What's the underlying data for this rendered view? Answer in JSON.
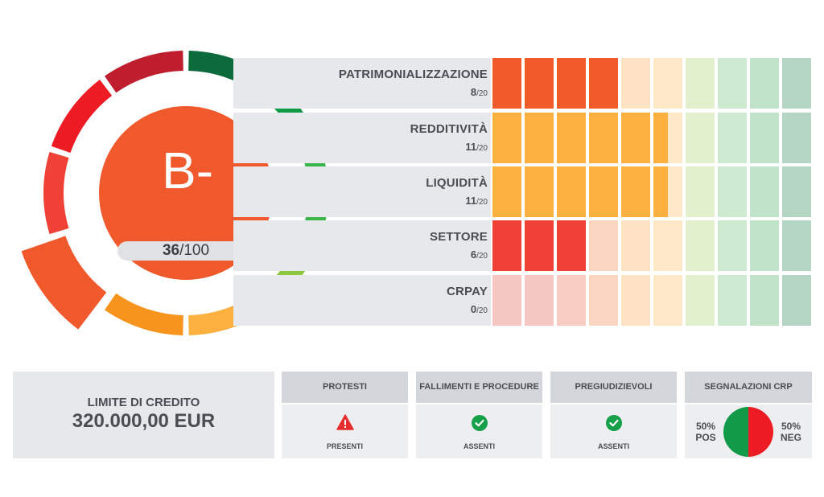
{
  "rating": {
    "grade": "B-",
    "score": "36",
    "score_max": "/100",
    "gauge_colors": [
      "#f0592b",
      "#f7941d",
      "#fbb040",
      "#8dc63f",
      "#39b54a",
      "#0f9a48",
      "#0b6b3a",
      "#be1e2d",
      "#ed1c24",
      "#ef4136"
    ],
    "active_color": "#f0592b"
  },
  "categories": [
    {
      "name": "PATRIMONIALIZZAZIONE",
      "score": "8",
      "max": "/20",
      "value": 8,
      "color": "#f15a29"
    },
    {
      "name": "REDDITIVITÀ",
      "score": "11",
      "max": "/20",
      "value": 11,
      "color": "#fbb040"
    },
    {
      "name": "LIQUIDITÀ",
      "score": "11",
      "max": "/20",
      "value": 11,
      "color": "#fbb040"
    },
    {
      "name": "SETTORE",
      "score": "6",
      "max": "/20",
      "value": 6,
      "color": "#ef4136"
    },
    {
      "name": "CRPAY",
      "score": "0",
      "max": "/20",
      "value": 0,
      "color": "#ef4136"
    }
  ],
  "scale_colors": [
    "#f4c7c3",
    "#f4c7c3",
    "#f7ccc3",
    "#fad6c1",
    "#fde3c4",
    "#fee8c8",
    "#e2efcd",
    "#cde9cf",
    "#bfe2c8",
    "#b4d4c4"
  ],
  "credit": {
    "label": "LIMITE DI CREDITO",
    "value": "320.000,00 EUR"
  },
  "cards": [
    {
      "title": "PROTESTI",
      "status": "PRESENTI",
      "icon": "warning-icon"
    },
    {
      "title": "FALLIMENTI E PROCEDURE",
      "status": "ASSENTI",
      "icon": "check-icon"
    },
    {
      "title": "PREGIUDIZIEVOLI",
      "status": "ASSENTI",
      "icon": "check-icon"
    }
  ],
  "crp": {
    "title": "SEGNALAZIONI CRP",
    "pos_pct": "50%",
    "pos_label": "POS",
    "neg_pct": "50%",
    "neg_label": "NEG",
    "pos_share": 0.5,
    "pos_color": "#119a48",
    "neg_color": "#ed1c24"
  }
}
